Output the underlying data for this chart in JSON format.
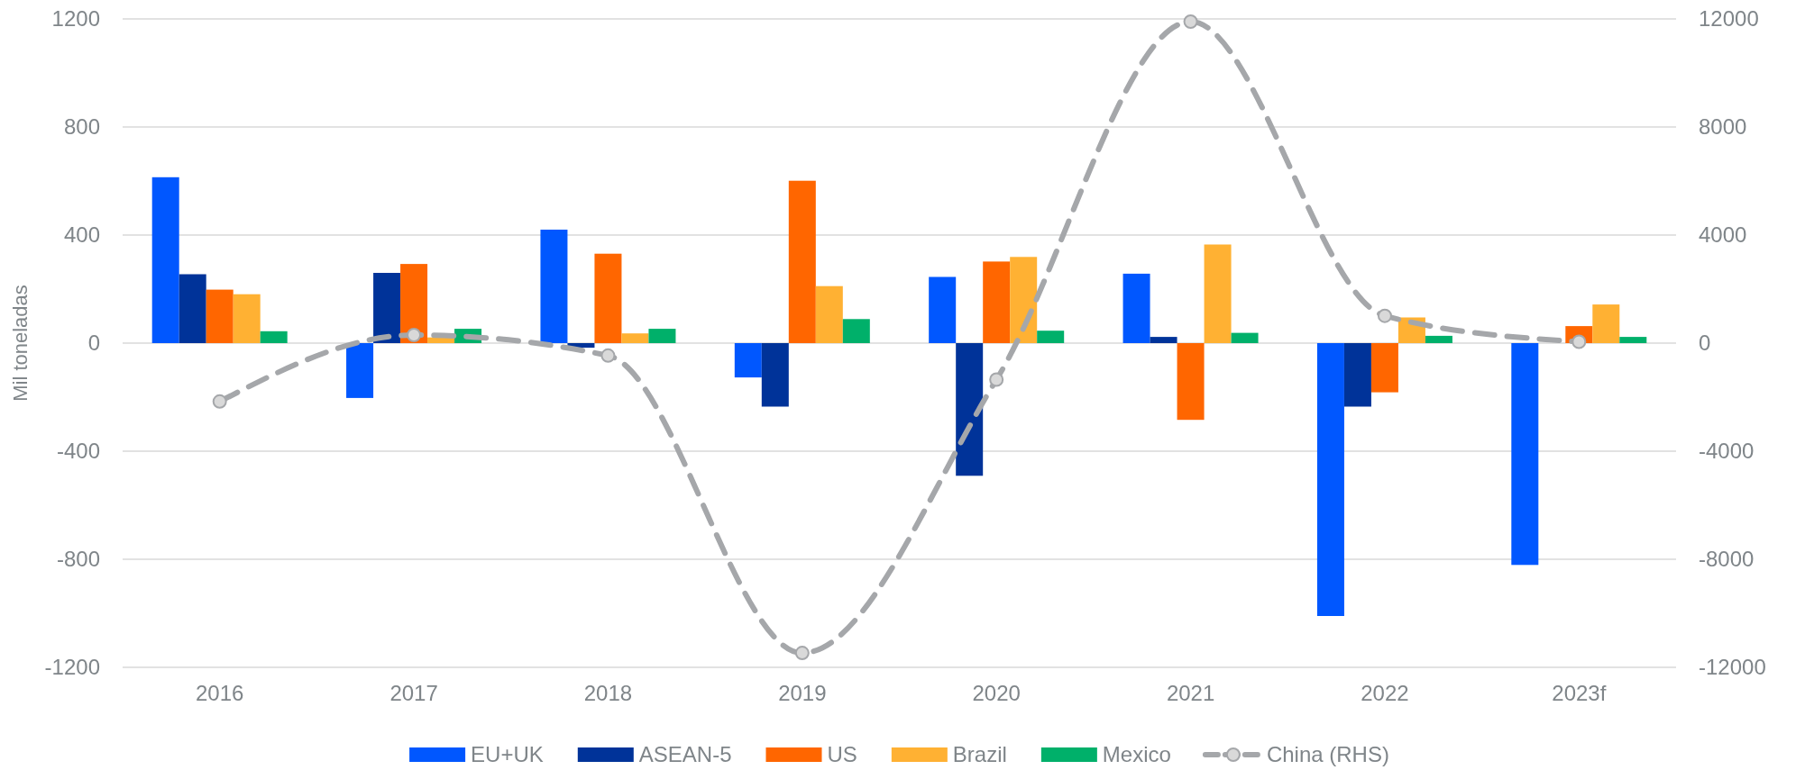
{
  "chart_data": {
    "type": "bar",
    "ylabel": "Mil toneladas",
    "categories": [
      "2016",
      "2017",
      "2018",
      "2019",
      "2020",
      "2021",
      "2022",
      "2023f"
    ],
    "series": [
      {
        "name": "EU+UK",
        "color": "#0057ff",
        "values": [
          614,
          -203,
          420,
          -127,
          245,
          257,
          -1010,
          -821
        ]
      },
      {
        "name": "ASEAN-5",
        "color": "#003399",
        "values": [
          255,
          260,
          -17,
          -235,
          -491,
          23,
          -235,
          null
        ]
      },
      {
        "name": "US",
        "color": "#ff6600",
        "values": [
          198,
          293,
          331,
          601,
          302,
          -284,
          -182,
          63
        ]
      },
      {
        "name": "Brazil",
        "color": "#ffb133",
        "values": [
          181,
          21,
          36,
          211,
          319,
          365,
          95,
          143
        ]
      },
      {
        "name": "Mexico",
        "color": "#00b06a",
        "values": [
          44,
          53,
          53,
          89,
          46,
          38,
          27,
          23
        ]
      },
      {
        "name": "China (RHS)",
        "type": "line",
        "axis": "y2",
        "color": "#a5a7aa",
        "marker": "circle",
        "line_style": "dashed",
        "values": [
          -2160,
          300,
          -460,
          -11470,
          -1350,
          11900,
          1010,
          50
        ]
      }
    ],
    "ylim": [
      -1200,
      1200
    ],
    "yticks": [
      -1200,
      -800,
      -400,
      0,
      400,
      800,
      1200
    ],
    "y2lim": [
      -12000,
      12000
    ],
    "y2ticks": [
      -12000,
      -8000,
      -4000,
      0,
      4000,
      8000,
      12000
    ],
    "grid": "y",
    "legend": "bottom"
  }
}
